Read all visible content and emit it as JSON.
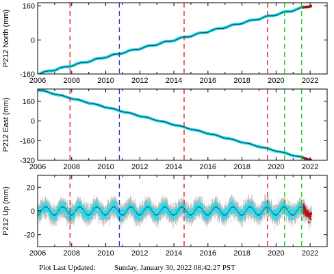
{
  "footer": {
    "label": "Plot Last Updated:",
    "timestamp": "Sunday, January 30, 2022 08:42:27 PST"
  },
  "colors": {
    "data_cyan": "#22ddee",
    "errorbar_grey": "#b8b8b8",
    "trend_dark": "#104050",
    "recent_red": "#cc1111",
    "event_red": "#dd2222",
    "event_blue": "#2233dd",
    "event_green": "#22cc22"
  },
  "chart_data": [
    {
      "type": "scatter",
      "ylabel": "P212 North (mm)",
      "xlim": [
        2006,
        2023
      ],
      "ylim": [
        -160,
        175
      ],
      "xticks": [
        2006,
        2008,
        2010,
        2012,
        2014,
        2016,
        2018,
        2020,
        2022
      ],
      "yticks": [
        -160,
        0,
        160
      ],
      "series": [
        {
          "start": [
            2006.0,
            -160
          ],
          "end": [
            2022.0,
            160
          ],
          "seasonal_amplitude": 3,
          "scatter": 2
        }
      ],
      "recent": {
        "from": 2021.6,
        "to": 2022.08
      },
      "events": [
        {
          "x": 2007.9,
          "color": "red"
        },
        {
          "x": 2010.8,
          "color": "blue"
        },
        {
          "x": 2014.6,
          "color": "red"
        },
        {
          "x": 2019.5,
          "color": "red"
        },
        {
          "x": 2020.5,
          "color": "green"
        },
        {
          "x": 2021.5,
          "color": "green"
        }
      ]
    },
    {
      "type": "scatter",
      "ylabel": "P212 East (mm)",
      "xlim": [
        2006,
        2023
      ],
      "ylim": [
        -320,
        260
      ],
      "xticks": [
        2006,
        2008,
        2010,
        2012,
        2014,
        2016,
        2018,
        2020,
        2022
      ],
      "yticks": [
        -320,
        -160,
        0,
        160
      ],
      "series": [
        {
          "start": [
            2006.0,
            255
          ],
          "end": [
            2022.0,
            -315
          ],
          "seasonal_amplitude": 3,
          "scatter": 3
        }
      ],
      "recent": {
        "from": 2021.6,
        "to": 2022.08
      },
      "events": [
        {
          "x": 2007.9,
          "color": "red"
        },
        {
          "x": 2010.8,
          "color": "blue"
        },
        {
          "x": 2014.6,
          "color": "red"
        },
        {
          "x": 2019.5,
          "color": "red"
        },
        {
          "x": 2020.5,
          "color": "green"
        },
        {
          "x": 2021.5,
          "color": "green"
        }
      ]
    },
    {
      "type": "scatter",
      "ylabel": "P212 Up (mm)",
      "xlim": [
        2006,
        2023
      ],
      "ylim": [
        -30,
        30
      ],
      "xticks": [
        2006,
        2008,
        2010,
        2012,
        2014,
        2016,
        2018,
        2020,
        2022
      ],
      "yticks": [
        -20,
        0,
        20
      ],
      "series": [
        {
          "start": [
            2006.0,
            0
          ],
          "end": [
            2022.0,
            0
          ],
          "seasonal_amplitude": 3.5,
          "scatter": 4.5,
          "errorbar": 5
        }
      ],
      "recent": {
        "from": 2021.6,
        "to": 2022.08
      },
      "events": [
        {
          "x": 2007.9,
          "color": "red"
        },
        {
          "x": 2010.8,
          "color": "blue"
        },
        {
          "x": 2014.6,
          "color": "red"
        },
        {
          "x": 2019.5,
          "color": "red"
        },
        {
          "x": 2020.5,
          "color": "green"
        },
        {
          "x": 2021.5,
          "color": "green"
        }
      ]
    }
  ]
}
